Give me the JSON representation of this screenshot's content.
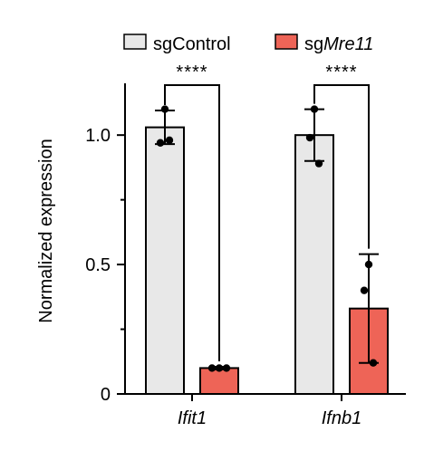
{
  "chart_data": {
    "type": "bar",
    "categories": [
      "Ifit1",
      "Ifnb1"
    ],
    "ylabel": "Normalized expression",
    "ylim": [
      0,
      1.2
    ],
    "yticks": [
      0,
      0.5,
      1.0
    ],
    "ytick_labels": [
      "0",
      "0.5",
      "1.0"
    ],
    "grid": false,
    "legend_position": "top",
    "series": [
      {
        "name": "sgControl",
        "name_prefix": "sg",
        "name_italic": "Control",
        "italic": false,
        "color": "#e8e8e8",
        "values": [
          1.03,
          1.0
        ],
        "error": [
          0.065,
          0.1
        ],
        "points": [
          [
            1.1,
            0.97,
            0.98
          ],
          [
            1.1,
            0.99,
            0.89
          ]
        ]
      },
      {
        "name": "sgMre11",
        "name_prefix": "sg",
        "name_italic": "Mre11",
        "italic": true,
        "color": "#ee6457",
        "values": [
          0.1,
          0.33
        ],
        "error": [
          0.005,
          0.21
        ],
        "points": [
          [
            0.1,
            0.1,
            0.1
          ],
          [
            0.5,
            0.4,
            0.12
          ]
        ]
      }
    ],
    "annotations": [
      {
        "category": "Ifit1",
        "text": "****"
      },
      {
        "category": "Ifnb1",
        "text": "****"
      }
    ]
  }
}
